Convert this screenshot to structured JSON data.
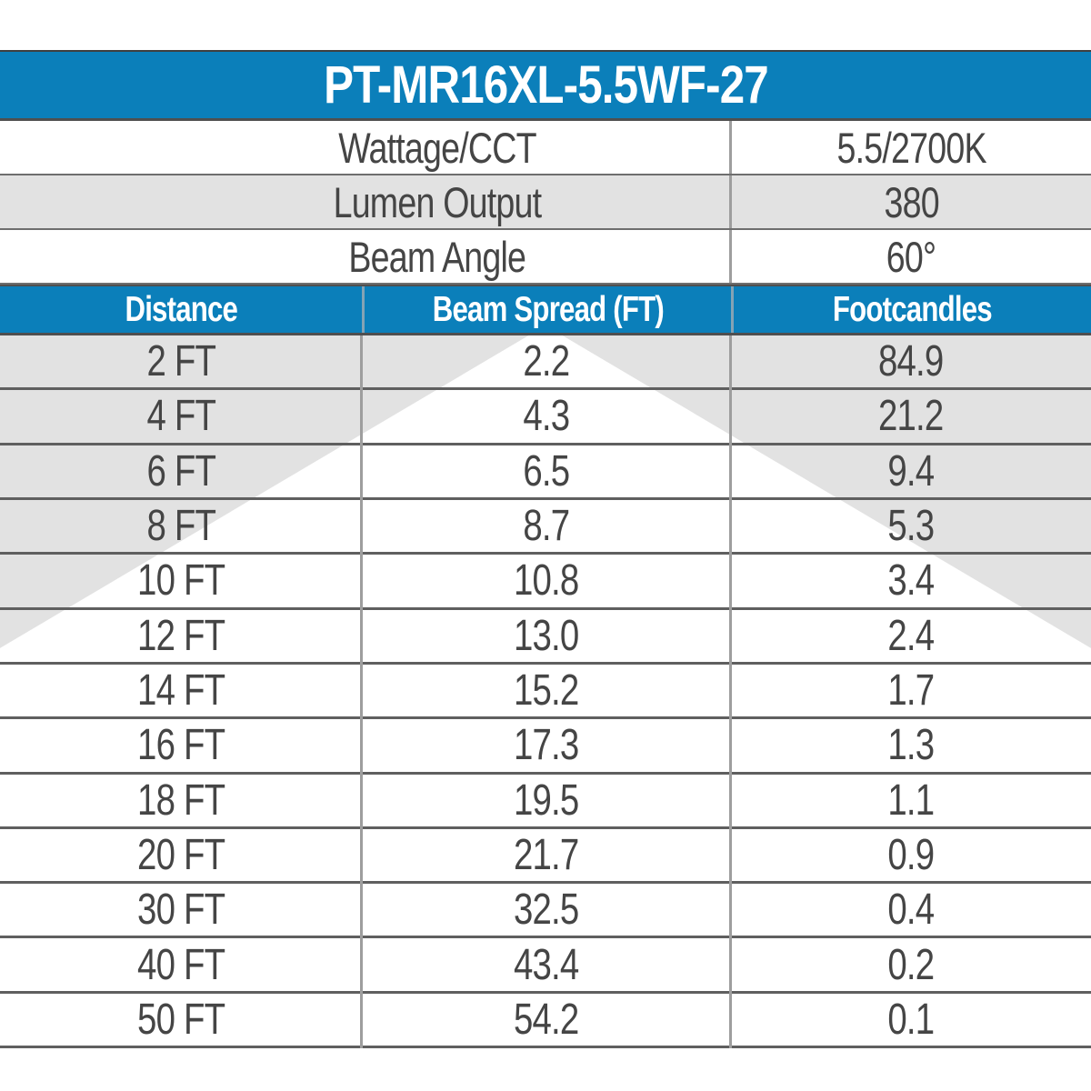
{
  "title": "PT-MR16XL-5.5WF-27",
  "specs": [
    {
      "label": "Wattage/CCT",
      "value": "5.5/2700K"
    },
    {
      "label": "Lumen Output",
      "value": "380"
    },
    {
      "label": "Beam Angle",
      "value": "60°"
    }
  ],
  "table": {
    "columns": [
      "Distance",
      "Beam Spread (FT)",
      "Footcandles"
    ],
    "rows": [
      [
        "2 FT",
        "2.2",
        "84.9"
      ],
      [
        "4 FT",
        "4.3",
        "21.2"
      ],
      [
        "6 FT",
        "6.5",
        "9.4"
      ],
      [
        "8 FT",
        "8.7",
        "5.3"
      ],
      [
        "10 FT",
        "10.8",
        "3.4"
      ],
      [
        "12 FT",
        "13.0",
        "2.4"
      ],
      [
        "14 FT",
        "15.2",
        "1.7"
      ],
      [
        "16 FT",
        "17.3",
        "1.3"
      ],
      [
        "18 FT",
        "19.5",
        "1.1"
      ],
      [
        "20 FT",
        "21.7",
        "0.9"
      ],
      [
        "30 FT",
        "32.5",
        "0.4"
      ],
      [
        "40 FT",
        "43.4",
        "0.2"
      ],
      [
        "50 FT",
        "54.2",
        "0.1"
      ]
    ]
  },
  "colors": {
    "accent_blue": "#0b7fba",
    "row_gray": "#e2e2e2",
    "text_ink": "#454545",
    "horizontal_divider": "#5f5f5f",
    "vertical_divider": "#9e9e9e"
  }
}
